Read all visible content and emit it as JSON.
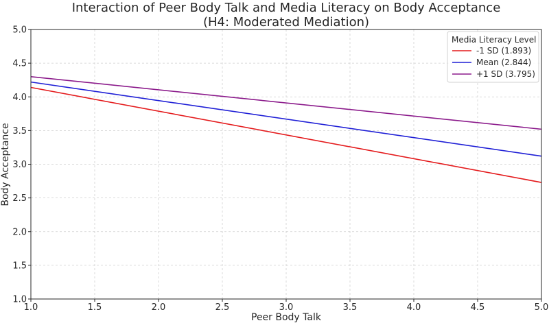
{
  "chart_data": {
    "type": "line",
    "title": "Interaction of Peer Body Talk and Media Literacy on Body Acceptance",
    "subtitle": "(H4: Moderated Mediation)",
    "xlabel": "Peer Body Talk",
    "ylabel": "Body Acceptance",
    "xlim": [
      1.0,
      5.0
    ],
    "ylim": [
      1.0,
      5.0
    ],
    "xticks": [
      "1.0",
      "1.5",
      "2.0",
      "2.5",
      "3.0",
      "3.5",
      "4.0",
      "4.5",
      "5.0"
    ],
    "yticks": [
      "1.0",
      "1.5",
      "2.0",
      "2.5",
      "3.0",
      "3.5",
      "4.0",
      "4.5",
      "5.0"
    ],
    "grid": true,
    "legend": {
      "title": "Media Literacy Level",
      "placement": "top-right"
    },
    "series": [
      {
        "name": "-1 SD (1.893)",
        "color": "#e41a1c",
        "x": [
          1.0,
          5.0
        ],
        "y": [
          4.14,
          2.73
        ]
      },
      {
        "name": "Mean (2.844)",
        "color": "#1f1fd6",
        "x": [
          1.0,
          5.0
        ],
        "y": [
          4.22,
          3.12
        ]
      },
      {
        "name": "+1 SD (3.795)",
        "color": "#8b1a8b",
        "x": [
          1.0,
          5.0
        ],
        "y": [
          4.3,
          3.52
        ]
      }
    ]
  }
}
